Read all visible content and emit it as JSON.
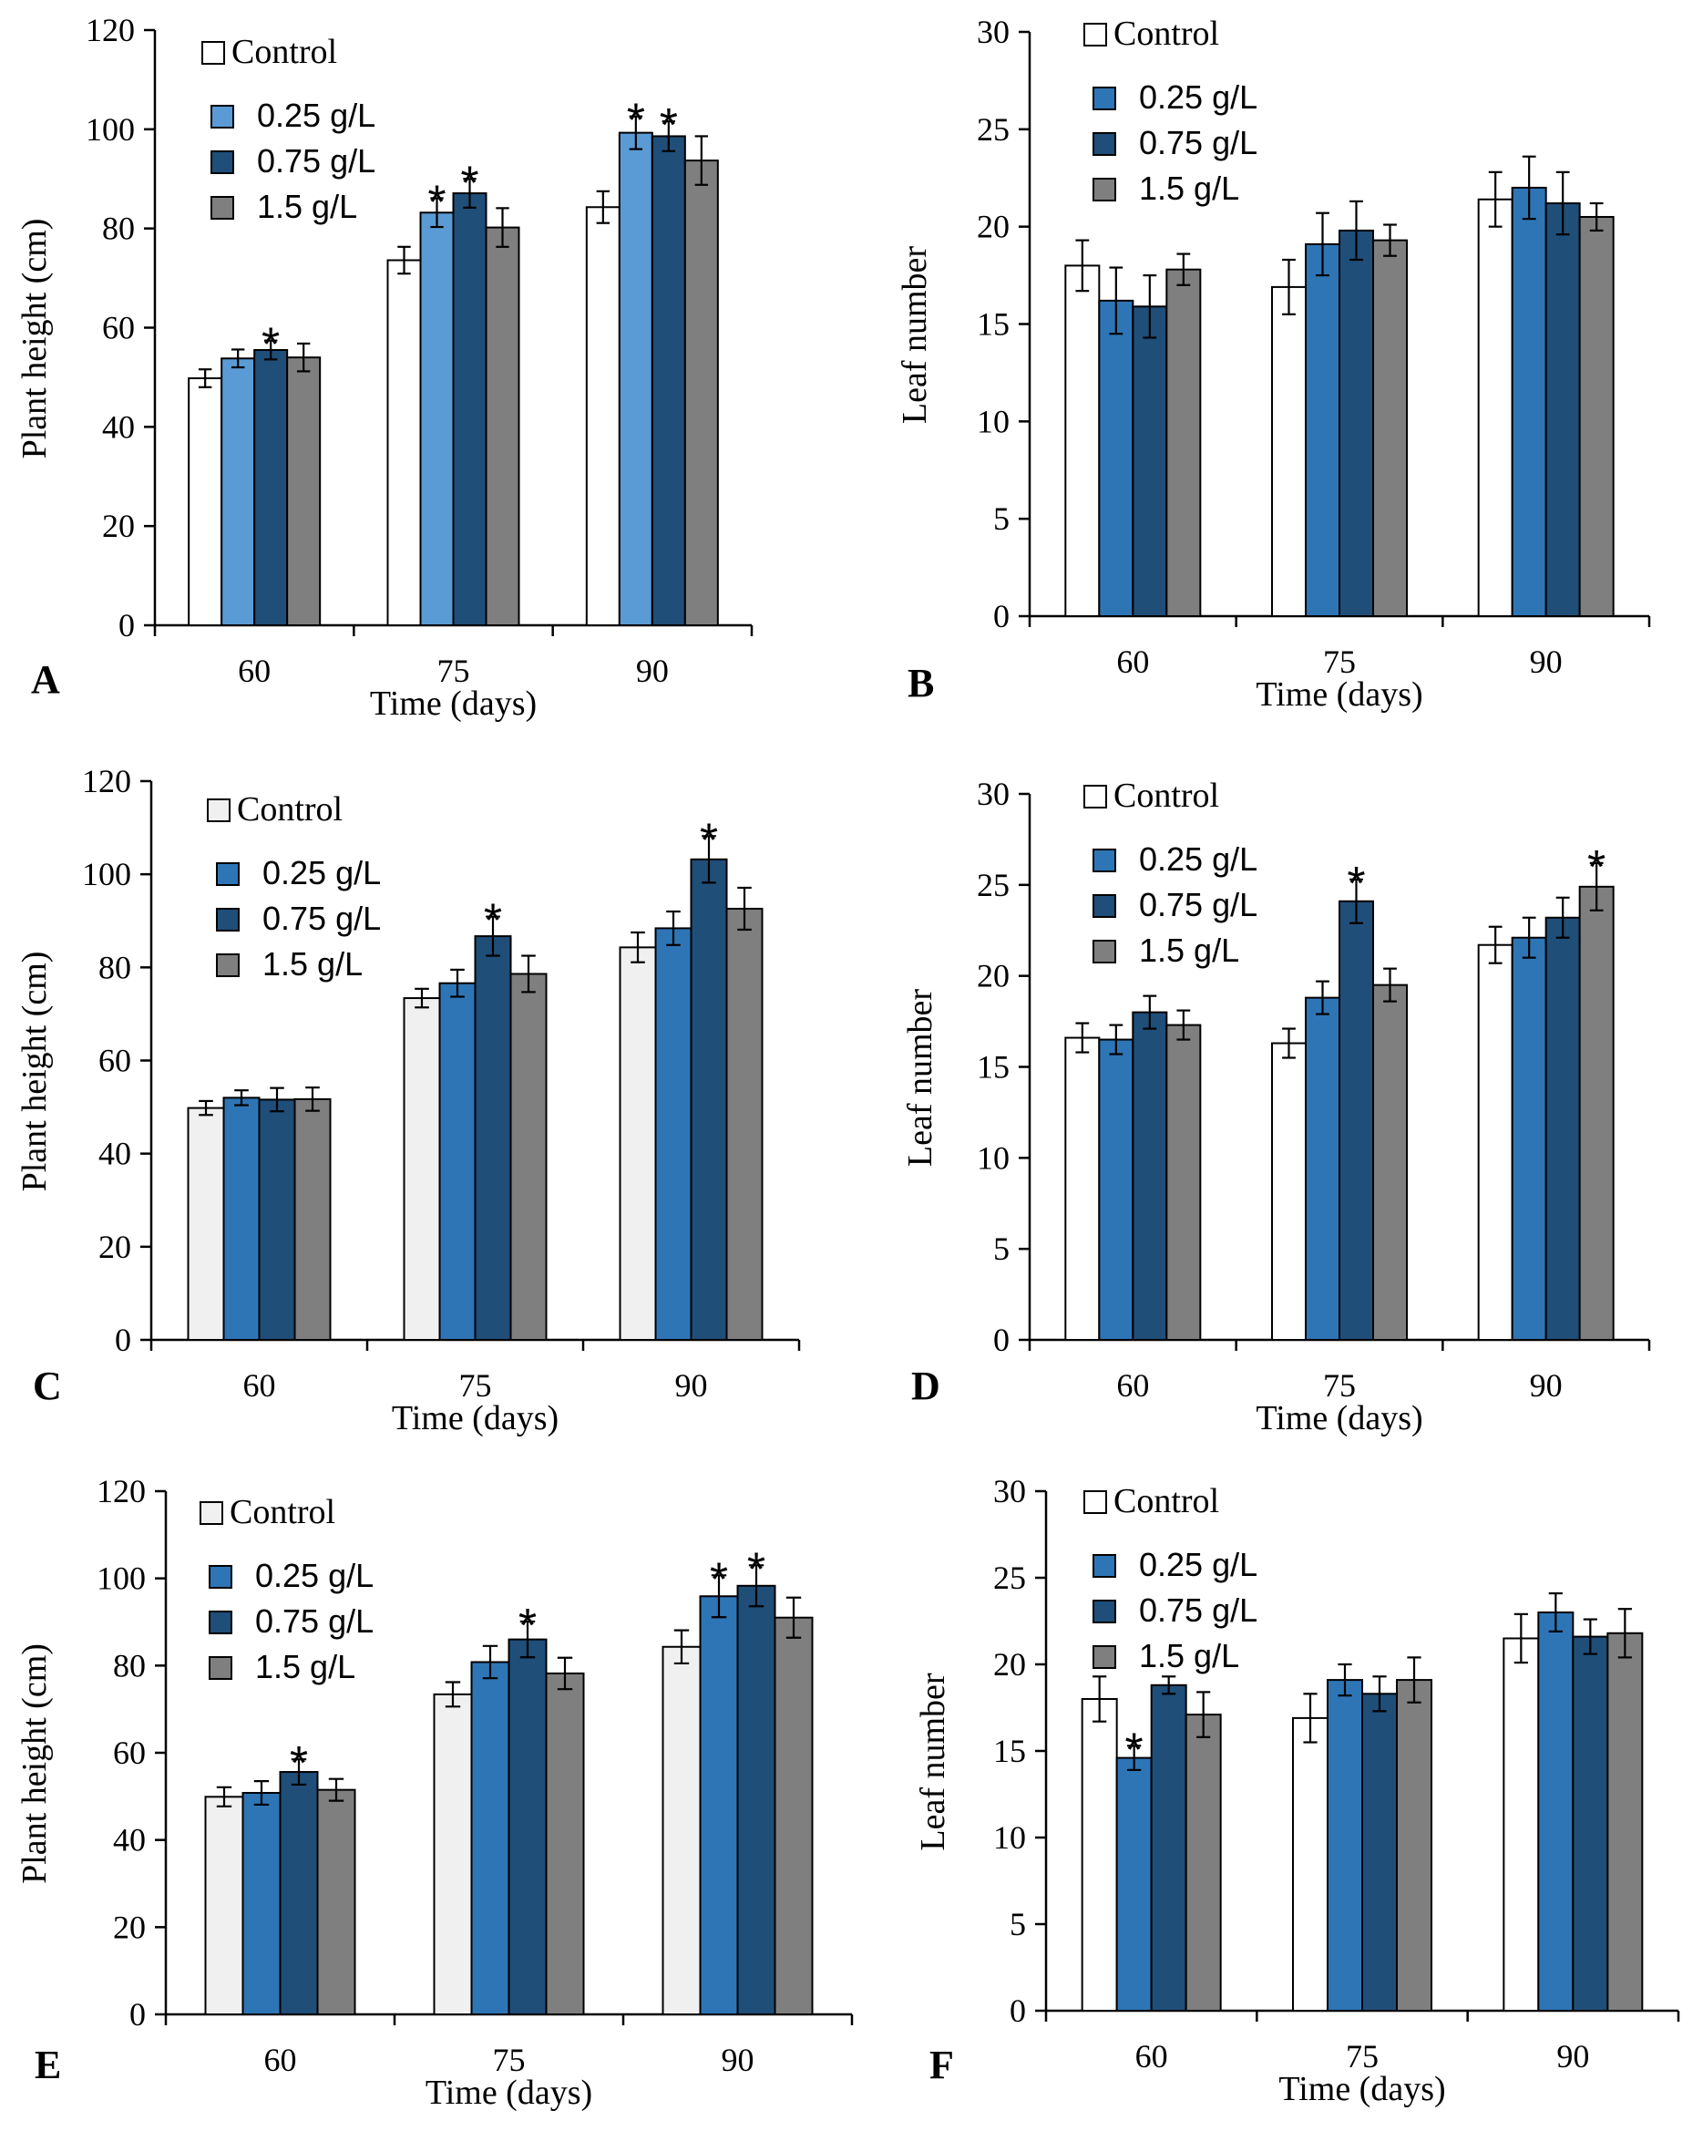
{
  "colors": {
    "control": "#ffffff",
    "control_alt": "#f0f0f0",
    "light_blue": "#5b9bd5",
    "mid_blue": "#2e75b6",
    "dark_blue": "#1f4e79",
    "gray": "#7f7f7f"
  },
  "chart_data": [
    {
      "panel": "A",
      "type": "bar",
      "xlabel": "Time (days)",
      "ylabel": "Plant height (cm)",
      "categories": [
        "60",
        "75",
        "90"
      ],
      "ylim": [
        0,
        120
      ],
      "yticks": [
        0,
        20,
        40,
        60,
        80,
        100,
        120
      ],
      "legend": "top-left",
      "series": [
        {
          "name": "Control",
          "color_key": "control",
          "legend_font": "serif",
          "values": [
            49.8,
            73.6,
            84.3
          ],
          "errors": [
            1.8,
            2.7,
            3.2
          ],
          "significant": [
            false,
            false,
            false
          ]
        },
        {
          "name": "0.25 g/L",
          "color_key": "light_blue",
          "legend_font": "sans",
          "values": [
            53.8,
            83.2,
            99.3
          ],
          "errors": [
            1.8,
            2.9,
            3.3
          ],
          "significant": [
            false,
            true,
            true
          ]
        },
        {
          "name": "0.75 g/L",
          "color_key": "dark_blue",
          "legend_font": "sans",
          "values": [
            55.5,
            87.1,
            98.6
          ],
          "errors": [
            1.9,
            2.9,
            3.0
          ],
          "significant": [
            true,
            true,
            true
          ]
        },
        {
          "name": "1.5 g/L",
          "color_key": "gray",
          "legend_font": "sans",
          "values": [
            54.0,
            80.2,
            93.7
          ],
          "errors": [
            2.8,
            3.9,
            4.9
          ],
          "significant": [
            false,
            false,
            false
          ]
        }
      ]
    },
    {
      "panel": "B",
      "type": "bar",
      "xlabel": "Time (days)",
      "ylabel": "Leaf number",
      "categories": [
        "60",
        "75",
        "90"
      ],
      "ylim": [
        0,
        30
      ],
      "yticks": [
        0,
        5,
        10,
        15,
        20,
        25,
        30
      ],
      "legend": "top-left",
      "series": [
        {
          "name": "Control",
          "color_key": "control",
          "legend_font": "serif",
          "values": [
            18.0,
            16.9,
            21.4
          ],
          "errors": [
            1.3,
            1.4,
            1.4
          ],
          "significant": [
            false,
            false,
            false
          ]
        },
        {
          "name": "0.25 g/L",
          "color_key": "mid_blue",
          "legend_font": "sans",
          "values": [
            16.2,
            19.1,
            22.0
          ],
          "errors": [
            1.7,
            1.6,
            1.6
          ],
          "significant": [
            false,
            false,
            false
          ]
        },
        {
          "name": "0.75 g/L",
          "color_key": "dark_blue",
          "legend_font": "sans",
          "values": [
            15.9,
            19.8,
            21.2
          ],
          "errors": [
            1.6,
            1.5,
            1.6
          ],
          "significant": [
            false,
            false,
            false
          ]
        },
        {
          "name": "1.5 g/L",
          "color_key": "gray",
          "legend_font": "sans",
          "values": [
            17.8,
            19.3,
            20.5
          ],
          "errors": [
            0.8,
            0.8,
            0.7
          ],
          "significant": [
            false,
            false,
            false
          ]
        }
      ]
    },
    {
      "panel": "C",
      "type": "bar",
      "xlabel": "Time (days)",
      "ylabel": "Plant height (cm)",
      "categories": [
        "60",
        "75",
        "90"
      ],
      "ylim": [
        0,
        120
      ],
      "yticks": [
        0,
        20,
        40,
        60,
        80,
        100,
        120
      ],
      "legend": "top-left",
      "series": [
        {
          "name": "Control",
          "color_key": "control_alt",
          "legend_font": "serif",
          "values": [
            49.8,
            73.4,
            84.3
          ],
          "errors": [
            1.5,
            2.0,
            3.2
          ],
          "significant": [
            false,
            false,
            false
          ]
        },
        {
          "name": "0.25 g/L",
          "color_key": "mid_blue",
          "legend_font": "sans",
          "values": [
            52.0,
            76.6,
            88.4
          ],
          "errors": [
            1.6,
            2.9,
            3.6
          ],
          "significant": [
            false,
            false,
            false
          ]
        },
        {
          "name": "0.75 g/L",
          "color_key": "dark_blue",
          "legend_font": "sans",
          "values": [
            51.6,
            86.7,
            103.2
          ],
          "errors": [
            2.5,
            4.2,
            5.0
          ],
          "significant": [
            false,
            true,
            true
          ]
        },
        {
          "name": "1.5 g/L",
          "color_key": "gray",
          "legend_font": "sans",
          "values": [
            51.7,
            78.6,
            92.6
          ],
          "errors": [
            2.5,
            3.9,
            4.5
          ],
          "significant": [
            false,
            false,
            false
          ]
        }
      ]
    },
    {
      "panel": "D",
      "type": "bar",
      "xlabel": "Time (days)",
      "ylabel": "Leaf number",
      "categories": [
        "60",
        "75",
        "90"
      ],
      "ylim": [
        0,
        30
      ],
      "yticks": [
        0,
        5,
        10,
        15,
        20,
        25,
        30
      ],
      "legend": "top-left",
      "series": [
        {
          "name": "Control",
          "color_key": "control",
          "legend_font": "serif",
          "values": [
            16.6,
            16.3,
            21.7
          ],
          "errors": [
            0.8,
            0.8,
            1.0
          ],
          "significant": [
            false,
            false,
            false
          ]
        },
        {
          "name": "0.25 g/L",
          "color_key": "mid_blue",
          "legend_font": "sans",
          "values": [
            16.5,
            18.8,
            22.1
          ],
          "errors": [
            0.8,
            0.9,
            1.1
          ],
          "significant": [
            false,
            false,
            false
          ]
        },
        {
          "name": "0.75 g/L",
          "color_key": "dark_blue",
          "legend_font": "sans",
          "values": [
            18.0,
            24.1,
            23.2
          ],
          "errors": [
            0.9,
            1.2,
            1.1
          ],
          "significant": [
            false,
            true,
            false
          ]
        },
        {
          "name": "1.5 g/L",
          "color_key": "gray",
          "legend_font": "sans",
          "values": [
            17.3,
            19.5,
            24.9
          ],
          "errors": [
            0.8,
            0.9,
            1.3
          ],
          "significant": [
            false,
            false,
            true
          ]
        }
      ]
    },
    {
      "panel": "E",
      "type": "bar",
      "xlabel": "Time (days)",
      "ylabel": "Plant height (cm)",
      "categories": [
        "60",
        "75",
        "90"
      ],
      "ylim": [
        0,
        120
      ],
      "yticks": [
        0,
        20,
        40,
        60,
        80,
        100,
        120
      ],
      "legend": "top-left",
      "series": [
        {
          "name": "Control",
          "color_key": "control_alt",
          "legend_font": "serif",
          "values": [
            49.9,
            73.4,
            84.3
          ],
          "errors": [
            2.2,
            2.8,
            3.8
          ],
          "significant": [
            false,
            false,
            false
          ]
        },
        {
          "name": "0.25 g/L",
          "color_key": "mid_blue",
          "legend_font": "sans",
          "values": [
            50.8,
            80.8,
            95.9
          ],
          "errors": [
            2.7,
            3.7,
            4.8
          ],
          "significant": [
            false,
            false,
            true
          ]
        },
        {
          "name": "0.75 g/L",
          "color_key": "dark_blue",
          "legend_font": "sans",
          "values": [
            55.6,
            86.0,
            98.3
          ],
          "errors": [
            2.9,
            4.1,
            4.7
          ],
          "significant": [
            true,
            true,
            true
          ]
        },
        {
          "name": "1.5 g/L",
          "color_key": "gray",
          "legend_font": "sans",
          "values": [
            51.5,
            78.2,
            91.0
          ],
          "errors": [
            2.5,
            3.6,
            4.6
          ],
          "significant": [
            false,
            false,
            false
          ]
        }
      ]
    },
    {
      "panel": "F",
      "type": "bar",
      "xlabel": "Time (days)",
      "ylabel": "Leaf number",
      "categories": [
        "60",
        "75",
        "90"
      ],
      "ylim": [
        0,
        30
      ],
      "yticks": [
        0,
        5,
        10,
        15,
        20,
        25,
        30
      ],
      "legend": "top-left",
      "series": [
        {
          "name": "Control",
          "color_key": "control",
          "legend_font": "serif",
          "values": [
            18.0,
            16.9,
            21.5
          ],
          "errors": [
            1.3,
            1.4,
            1.4
          ],
          "significant": [
            false,
            false,
            false
          ]
        },
        {
          "name": "0.25 g/L",
          "color_key": "mid_blue",
          "legend_font": "sans",
          "values": [
            14.6,
            19.1,
            23.0
          ],
          "errors": [
            0.7,
            0.9,
            1.1
          ],
          "significant": [
            true,
            false,
            false
          ]
        },
        {
          "name": "0.75 g/L",
          "color_key": "dark_blue",
          "legend_font": "sans",
          "values": [
            18.8,
            18.3,
            21.6
          ],
          "errors": [
            0.5,
            1.0,
            1.0
          ],
          "significant": [
            false,
            false,
            false
          ]
        },
        {
          "name": "1.5 g/L",
          "color_key": "gray",
          "legend_font": "sans",
          "values": [
            17.1,
            19.1,
            21.8
          ],
          "errors": [
            1.3,
            1.3,
            1.4
          ],
          "significant": [
            false,
            false,
            false
          ]
        }
      ]
    }
  ]
}
